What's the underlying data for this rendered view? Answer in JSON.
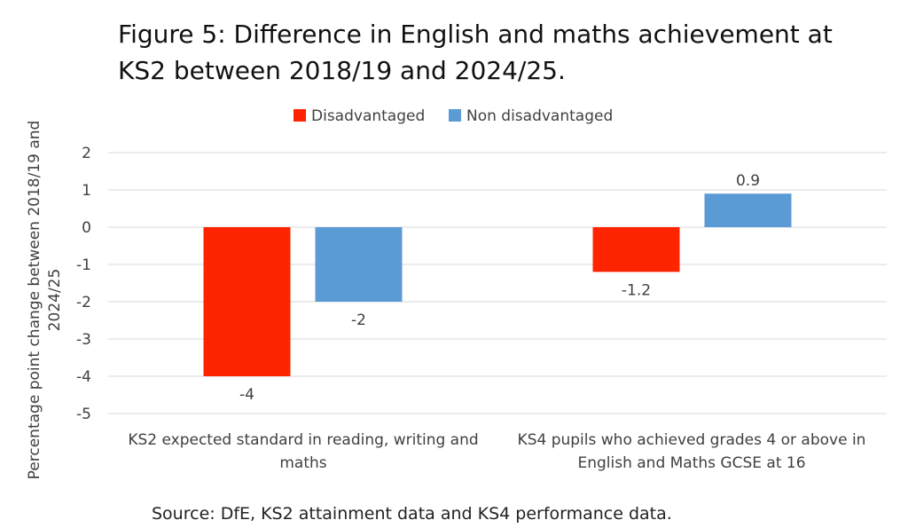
{
  "chart_data": {
    "type": "bar",
    "title_lines": [
      "Figure 5: Difference in English and maths achievement at",
      "KS2 between 2018/19 and 2024/25."
    ],
    "ylabel_lines": [
      "Percentage point change between 2018/19 and",
      "2024/25"
    ],
    "xlabel": "",
    "categories": [
      [
        "KS2 expected standard in reading, writing and",
        "maths"
      ],
      [
        "KS4 pupils who achieved grades 4 or above in",
        "English and Maths GCSE at 16"
      ]
    ],
    "series": [
      {
        "name": "Disadvantaged",
        "color": "#ff2400",
        "values": [
          -4,
          -1.2
        ]
      },
      {
        "name": "Non disadvantaged",
        "color": "#5b9bd5",
        "values": [
          -2,
          0.9
        ]
      }
    ],
    "ylim": [
      -5,
      2
    ],
    "yticks": [
      2,
      1,
      0,
      -1,
      -2,
      -3,
      -4,
      -5
    ],
    "grid": true,
    "legend_position": "top-center",
    "source": "Source: DfE, KS2 attainment data and KS4 performance data."
  }
}
